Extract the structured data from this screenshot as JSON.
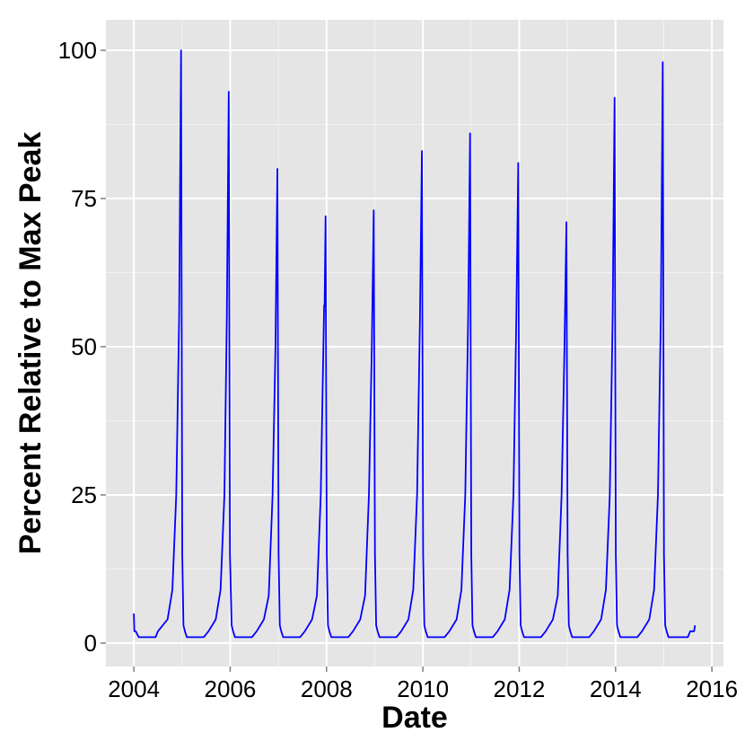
{
  "chart_data": {
    "type": "line",
    "xlabel": "Date",
    "ylabel": "Percent Relative to Max Peak",
    "color": "#0000ff",
    "background": "#e5e5e5",
    "grid": true,
    "xlim": [
      2003.42,
      2016.24
    ],
    "ylim": [
      -3.94,
      105.15
    ],
    "xticks": [
      2004,
      2006,
      2008,
      2010,
      2012,
      2014,
      2016
    ],
    "yticks": [
      0,
      25,
      50,
      75,
      100
    ],
    "xminor": [
      2005,
      2007,
      2009,
      2011,
      2013,
      2015
    ],
    "yminor": [
      12.5,
      37.5,
      62.5,
      87.5
    ],
    "x": [
      2004.0,
      2004.01,
      2004.04,
      2004.1,
      2004.45,
      2004.5,
      2004.6,
      2004.7,
      2004.8,
      2004.88,
      2004.94,
      2004.98,
      2005.005,
      2005.03,
      2005.06,
      2005.1,
      2005.45,
      2005.55,
      2005.7,
      2005.8,
      2005.88,
      2005.93,
      2005.97,
      2005.995,
      2006.03,
      2006.06,
      2006.1,
      2006.45,
      2006.55,
      2006.7,
      2006.8,
      2006.88,
      2006.94,
      2006.98,
      2007.005,
      2007.03,
      2007.06,
      2007.1,
      2007.45,
      2007.55,
      2007.7,
      2007.8,
      2007.88,
      2007.95,
      2007.96,
      2007.98,
      2008.005,
      2008.03,
      2008.06,
      2008.1,
      2008.45,
      2008.55,
      2008.7,
      2008.8,
      2008.88,
      2008.94,
      2008.98,
      2009.005,
      2009.03,
      2009.06,
      2009.1,
      2009.45,
      2009.55,
      2009.7,
      2009.8,
      2009.88,
      2009.94,
      2009.98,
      2010.005,
      2010.03,
      2010.06,
      2010.1,
      2010.45,
      2010.55,
      2010.7,
      2010.8,
      2010.88,
      2010.94,
      2010.98,
      2011.005,
      2011.03,
      2011.06,
      2011.1,
      2011.45,
      2011.55,
      2011.7,
      2011.8,
      2011.88,
      2011.94,
      2011.98,
      2012.005,
      2012.03,
      2012.06,
      2012.1,
      2012.45,
      2012.55,
      2012.7,
      2012.8,
      2012.88,
      2012.94,
      2012.98,
      2013.005,
      2013.03,
      2013.06,
      2013.1,
      2013.45,
      2013.55,
      2013.7,
      2013.8,
      2013.88,
      2013.94,
      2013.98,
      2014.005,
      2014.03,
      2014.06,
      2014.1,
      2014.45,
      2014.55,
      2014.7,
      2014.8,
      2014.88,
      2014.94,
      2014.98,
      2015.005,
      2015.03,
      2015.06,
      2015.1,
      2015.5,
      2015.55,
      2015.63,
      2015.65
    ],
    "values": [
      5,
      2,
      2,
      1,
      1,
      2,
      3,
      4,
      9,
      25,
      55,
      100,
      15,
      3,
      2,
      1,
      1,
      2,
      4,
      9,
      25,
      55,
      93,
      15,
      3,
      2,
      1,
      1,
      2,
      4,
      8,
      25,
      50,
      80,
      15,
      3,
      2,
      1,
      1,
      2,
      4,
      8,
      25,
      57,
      57,
      72,
      15,
      3,
      2,
      1,
      1,
      2,
      4,
      8,
      25,
      50,
      73,
      15,
      3,
      2,
      1,
      1,
      2,
      4,
      9,
      25,
      55,
      83,
      15,
      3,
      2,
      1,
      1,
      2,
      4,
      9,
      25,
      55,
      86,
      15,
      3,
      2,
      1,
      1,
      2,
      4,
      9,
      25,
      55,
      81,
      15,
      3,
      2,
      1,
      1,
      2,
      4,
      8,
      25,
      50,
      71,
      15,
      3,
      2,
      1,
      1,
      2,
      4,
      9,
      25,
      55,
      92,
      15,
      3,
      2,
      1,
      1,
      2,
      4,
      9,
      25,
      55,
      98,
      15,
      3,
      2,
      1,
      1,
      2,
      2,
      3
    ]
  }
}
